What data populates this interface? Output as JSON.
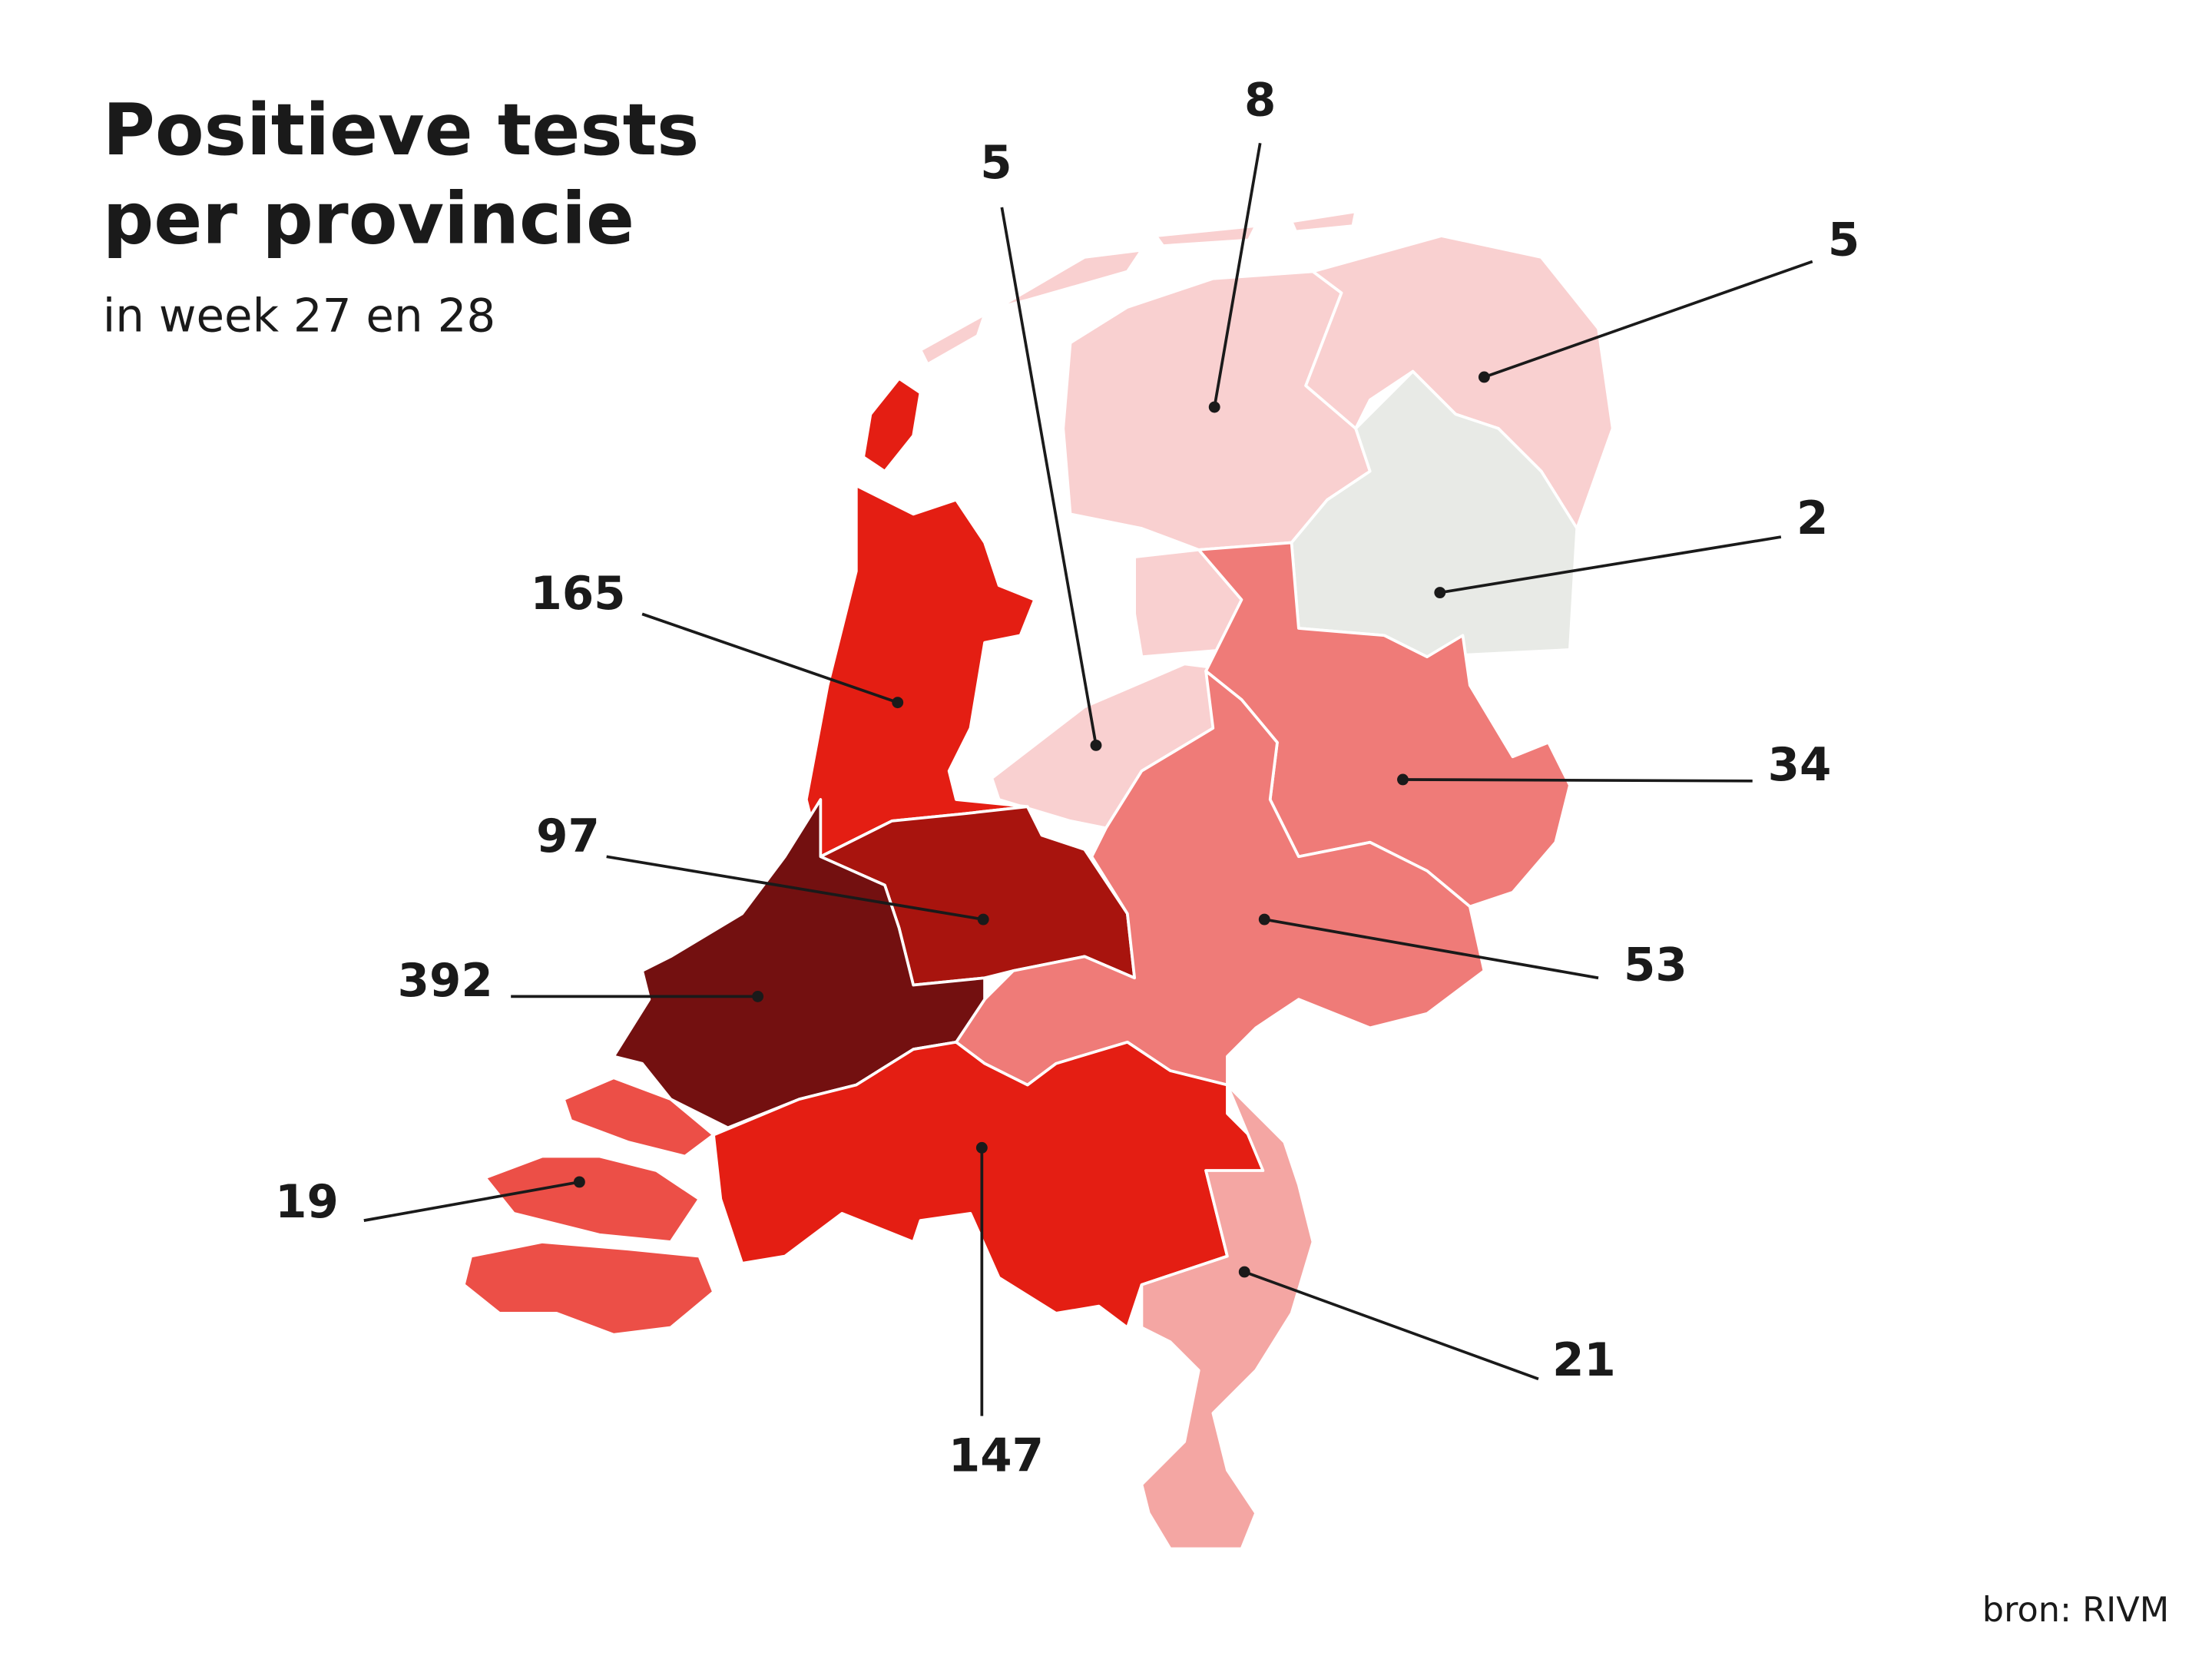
{
  "title": [
    "Positieve tests",
    "per provincie"
  ],
  "subtitle": "in week 27 en 28",
  "source": "bron: RIVM",
  "regions": [
    {
      "value": 8,
      "color": "#f9d0d0"
    },
    {
      "value": 5,
      "color": "#f9d0d0"
    },
    {
      "value": 5,
      "color": "#f9d0d0"
    },
    {
      "value": 2,
      "color": "#e8eae6"
    },
    {
      "value": 165,
      "color": "#e41e13"
    },
    {
      "value": 34,
      "color": "#ef7b78"
    },
    {
      "value": 97,
      "color": "#a8140e"
    },
    {
      "value": 53,
      "color": "#ef7b78"
    },
    {
      "value": 392,
      "color": "#731010"
    },
    {
      "value": 19,
      "color": "#ec4f47"
    },
    {
      "value": 147,
      "color": "#e41e13"
    },
    {
      "value": 21,
      "color": "#f4a6a3"
    }
  ]
}
